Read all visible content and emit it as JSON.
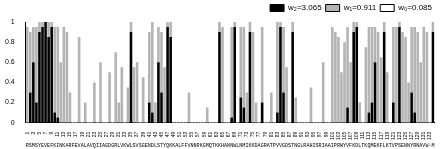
{
  "chart_data": {
    "type": "bar",
    "stacked": true,
    "legend": "top-right",
    "grid": false,
    "categories": [
      1,
      null,
      3,
      null,
      5,
      null,
      7,
      null,
      9,
      null,
      11,
      null,
      13,
      null,
      15,
      null,
      17,
      null,
      19,
      null,
      21,
      null,
      23,
      null,
      25,
      null,
      27,
      null,
      29,
      null,
      31,
      null,
      33,
      null,
      35,
      null,
      37,
      null,
      39,
      null,
      41,
      null,
      43,
      null,
      45,
      null,
      47,
      null,
      49,
      null,
      51,
      null,
      53,
      null,
      55,
      null,
      57,
      null,
      59,
      null,
      61,
      null,
      63,
      null,
      65,
      null,
      67,
      null,
      69,
      null,
      71,
      null,
      73,
      null,
      75,
      null,
      77,
      null,
      79,
      null,
      81,
      null,
      83,
      null,
      85,
      null,
      87,
      null,
      89,
      null,
      91,
      null,
      93,
      null,
      95,
      null,
      97,
      null,
      99,
      null,
      101,
      null,
      103,
      null,
      105,
      null,
      107,
      null,
      109,
      null,
      111,
      null,
      113,
      null,
      115,
      null,
      117,
      null,
      119,
      null,
      121,
      null,
      123,
      null,
      125,
      null,
      127,
      null,
      129,
      null,
      131,
      null,
      133,
      null
    ],
    "sequence": "RSMSYEVEFKINKARFEVALAVQIIAGDGRLVKWLSVSGENDLSTYQKKALFFVNNRKGMQTKKHANNWLNMIKKDAGRATPVVGDSTNGLRAHISRIAAIPRWYVFKDLTKQMEKFLKTVPSENNYRNAVW-M",
    "ylim": [
      0,
      1
    ],
    "yticks": [
      0,
      0.2,
      0.4,
      0.6,
      0.8,
      1
    ],
    "series": [
      {
        "name": "w₂=3.065",
        "color": "#000000",
        "values": [
          0,
          0.3,
          0.6,
          0.2,
          0.9,
          0.95,
          1,
          0.85,
          0.95,
          0.1,
          0.05,
          0,
          0,
          0,
          0,
          0,
          0,
          0,
          0,
          0,
          0,
          0,
          0,
          0,
          0,
          0,
          0,
          0,
          0,
          0,
          0,
          0,
          0,
          0,
          0.9,
          0,
          0,
          0,
          0,
          0,
          0.2,
          0.1,
          0,
          0.6,
          0.3,
          0,
          0.95,
          0.85,
          0,
          0,
          0,
          0,
          0,
          0,
          0,
          0,
          0,
          0,
          0,
          0,
          0,
          0,
          0,
          0.9,
          0,
          0,
          0,
          0.05,
          0.95,
          0,
          0.25,
          0.15,
          0,
          0.9,
          0,
          0,
          0,
          0.2,
          0,
          0,
          0,
          0,
          0.1,
          0.95,
          0.3,
          0,
          0,
          0.9,
          0,
          0,
          0,
          0,
          0,
          0,
          0,
          0,
          0,
          0,
          0,
          0,
          0,
          0,
          0,
          0,
          0,
          0.15,
          0,
          0.9,
          0.95,
          0,
          0,
          0,
          0.1,
          0.2,
          0.6,
          0,
          0,
          0.9,
          0,
          0,
          0.2,
          0,
          0.95,
          0,
          0,
          0,
          0.3,
          0.1,
          0,
          0,
          0,
          0,
          0,
          0.9
        ]
      },
      {
        "name": "w₁=0.911",
        "color": "#b4b4b4",
        "values": [
          0.95,
          0.6,
          0.35,
          0.75,
          0.1,
          0.05,
          0,
          0.15,
          0.05,
          0.85,
          0.9,
          0.6,
          0.95,
          0.9,
          0.3,
          0,
          0,
          0.85,
          0,
          0.2,
          0,
          0,
          0.4,
          0,
          0.6,
          0,
          0,
          0.5,
          0,
          0.7,
          0.2,
          0.55,
          0,
          0.35,
          0.1,
          0.55,
          0.6,
          0,
          0.45,
          0,
          0.7,
          0.9,
          0.2,
          0.35,
          0.6,
          0.55,
          0.05,
          0.15,
          0,
          0,
          0,
          0,
          0,
          0.3,
          0,
          0,
          0,
          0,
          0,
          0.15,
          0,
          0,
          0,
          0.1,
          0.95,
          0,
          0,
          0.9,
          0.05,
          0,
          0.7,
          0.8,
          0.3,
          0.1,
          0.9,
          0.2,
          0,
          0.75,
          0,
          0,
          0.3,
          0,
          0.9,
          0.05,
          0.65,
          0.55,
          0,
          0.1,
          0.25,
          0,
          0,
          0,
          0,
          0.35,
          0,
          0,
          0,
          0.6,
          0,
          0,
          0.95,
          0.9,
          0.85,
          0.5,
          0.8,
          0.8,
          0.6,
          0.1,
          0.05,
          0.2,
          0,
          0.75,
          0.85,
          0.75,
          0.35,
          0.9,
          0.65,
          0.1,
          0.5,
          0,
          0.75,
          0.95,
          0.05,
          0.9,
          0.85,
          0.4,
          0.65,
          0.85,
          0.9,
          0.6,
          0.95,
          0.9,
          0,
          0.1
        ]
      },
      {
        "name": "w₀=0.085",
        "color": "#ffffff",
        "values": [
          0.05,
          0.1,
          0.05,
          0.05,
          0,
          0,
          0,
          0,
          0,
          0.05,
          0.05,
          0.4,
          0.05,
          0.1,
          0.7,
          1,
          1,
          0.15,
          1,
          0.8,
          1,
          1,
          0.6,
          1,
          0.4,
          1,
          1,
          0.5,
          1,
          0.3,
          0.8,
          0.45,
          1,
          0.65,
          0,
          0.45,
          0.4,
          1,
          0.55,
          1,
          0.1,
          0,
          0.8,
          0.05,
          0.1,
          0.45,
          0,
          0,
          1,
          1,
          1,
          1,
          1,
          0.7,
          1,
          1,
          1,
          1,
          1,
          0.85,
          1,
          1,
          1,
          0,
          0.05,
          1,
          1,
          0.05,
          0,
          1,
          0.05,
          0.05,
          0.7,
          0,
          0.1,
          0.8,
          1,
          0.05,
          1,
          1,
          0.7,
          1,
          0,
          0,
          0.05,
          0.45,
          1,
          0,
          0.75,
          1,
          1,
          1,
          1,
          0.65,
          1,
          1,
          1,
          0.4,
          1,
          1,
          0.05,
          0.1,
          0.15,
          0.5,
          0.2,
          0.05,
          0.4,
          0,
          0,
          0.8,
          1,
          0.25,
          0.05,
          0.05,
          0.05,
          0.1,
          0.35,
          0,
          0.5,
          1,
          0.05,
          0.05,
          0,
          0.1,
          0.15,
          0.6,
          0.05,
          0.05,
          0.1,
          0.4,
          0.05,
          0.1,
          1,
          0
        ]
      }
    ]
  }
}
